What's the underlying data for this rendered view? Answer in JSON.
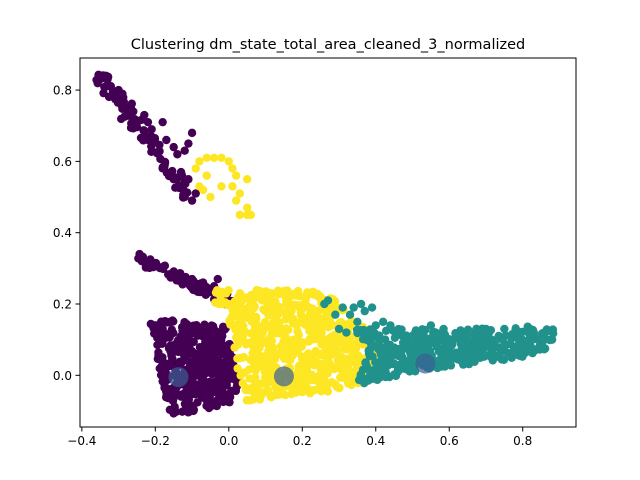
{
  "chart_data": {
    "type": "scatter",
    "title": "Clustering dm_state_total_area_cleaned_3_normalized",
    "xlabel": "",
    "ylabel": "",
    "xlim": [
      -0.405,
      0.945
    ],
    "ylim": [
      -0.145,
      0.89
    ],
    "xticks": [
      -0.4,
      -0.2,
      0.0,
      0.2,
      0.4,
      0.6,
      0.8
    ],
    "xtick_labels": [
      "−0.4",
      "−0.2",
      "0.0",
      "0.2",
      "0.4",
      "0.6",
      "0.8"
    ],
    "yticks": [
      0.0,
      0.2,
      0.4,
      0.6,
      0.8
    ],
    "ytick_labels": [
      "0.0",
      "0.2",
      "0.4",
      "0.6",
      "0.8"
    ],
    "grid": false,
    "legend": "none",
    "clusters": [
      {
        "color": "#440154",
        "regions": [
          {
            "kind": "band",
            "from": [
              -0.355,
              0.85
            ],
            "to": [
              -0.11,
              0.5
            ],
            "spread": 0.03,
            "n": 90
          },
          {
            "kind": "band",
            "from": [
              -0.25,
              0.33
            ],
            "to": [
              0.02,
              0.2
            ],
            "spread": 0.02,
            "n": 90
          },
          {
            "kind": "polygon",
            "points": [
              [
                -0.22,
                0.16
              ],
              [
                -0.01,
                0.14
              ],
              [
                0.03,
                -0.01
              ],
              [
                0.01,
                -0.09
              ],
              [
                -0.16,
                -0.11
              ]
            ],
            "n": 420
          }
        ],
        "extra_points": [
          [
            -0.33,
            0.83
          ],
          [
            -0.3,
            0.8
          ],
          [
            -0.26,
            0.74
          ],
          [
            -0.23,
            0.73
          ],
          [
            -0.22,
            0.71
          ],
          [
            -0.21,
            0.69
          ],
          [
            -0.18,
            0.71
          ],
          [
            -0.17,
            0.66
          ],
          [
            -0.15,
            0.64
          ],
          [
            -0.14,
            0.62
          ],
          [
            -0.12,
            0.63
          ],
          [
            -0.1,
            0.68
          ],
          [
            -0.11,
            0.65
          ],
          [
            -0.11,
            0.55
          ],
          [
            -0.15,
            0.55
          ],
          [
            -0.13,
            0.57
          ],
          [
            -0.12,
            0.54
          ],
          [
            -0.09,
            0.51
          ],
          [
            -0.12,
            0.5
          ],
          [
            -0.1,
            0.49
          ],
          [
            -0.1,
            0.27
          ],
          [
            -0.07,
            0.26
          ],
          [
            -0.04,
            0.25
          ],
          [
            -0.03,
            0.27
          ],
          [
            -0.03,
            0.22
          ],
          [
            0.0,
            0.21
          ]
        ],
        "centroid": [
          -0.137,
          -0.005
        ]
      },
      {
        "color": "#fde725",
        "regions": [
          {
            "kind": "polygon",
            "points": [
              [
                -0.07,
                0.24
              ],
              [
                0.28,
                0.24
              ],
              [
                0.33,
                0.16
              ],
              [
                0.42,
                0.1
              ],
              [
                0.38,
                -0.03
              ],
              [
                0.04,
                -0.08
              ],
              [
                0.0,
                0.16
              ],
              [
                -0.04,
                0.2
              ]
            ],
            "n": 650
          }
        ],
        "extra_points": [
          [
            -0.08,
            0.6
          ],
          [
            -0.09,
            0.58
          ],
          [
            -0.06,
            0.61
          ],
          [
            -0.04,
            0.61
          ],
          [
            -0.02,
            0.61
          ],
          [
            0.0,
            0.6
          ],
          [
            0.01,
            0.58
          ],
          [
            0.02,
            0.56
          ],
          [
            0.01,
            0.53
          ],
          [
            0.03,
            0.51
          ],
          [
            0.02,
            0.49
          ],
          [
            -0.05,
            0.5
          ],
          [
            -0.07,
            0.52
          ],
          [
            -0.06,
            0.56
          ],
          [
            -0.08,
            0.53
          ],
          [
            0.05,
            0.55
          ],
          [
            0.03,
            0.45
          ],
          [
            0.05,
            0.45
          ],
          [
            0.06,
            0.45
          ],
          [
            -0.02,
            0.53
          ],
          [
            0.05,
            0.47
          ]
        ],
        "centroid": [
          0.15,
          -0.003
        ]
      },
      {
        "color": "#21918c",
        "regions": [
          {
            "kind": "polygon",
            "points": [
              [
                0.34,
                0.13
              ],
              [
                0.6,
                0.13
              ],
              [
                0.8,
                0.14
              ],
              [
                0.89,
                0.13
              ],
              [
                0.86,
                0.07
              ],
              [
                0.8,
                0.05
              ],
              [
                0.5,
                0.01
              ],
              [
                0.35,
                -0.03
              ],
              [
                0.38,
                0.08
              ]
            ],
            "n": 420
          }
        ],
        "extra_points": [
          [
            0.26,
            0.2
          ],
          [
            0.27,
            0.21
          ],
          [
            0.29,
            0.17
          ],
          [
            0.31,
            0.19
          ],
          [
            0.33,
            0.17
          ],
          [
            0.34,
            0.19
          ],
          [
            0.36,
            0.2
          ],
          [
            0.37,
            0.18
          ],
          [
            0.39,
            0.19
          ],
          [
            0.35,
            0.15
          ],
          [
            0.4,
            0.14
          ],
          [
            0.42,
            0.15
          ],
          [
            0.44,
            0.14
          ],
          [
            0.3,
            0.13
          ],
          [
            0.32,
            0.12
          ],
          [
            0.55,
            0.14
          ],
          [
            0.7,
            0.13
          ],
          [
            0.75,
            0.13
          ],
          [
            0.83,
            0.12
          ],
          [
            0.86,
            0.12
          ],
          [
            0.88,
            0.1
          ]
        ],
        "centroid": [
          0.535,
          0.033
        ]
      }
    ],
    "centroid_marker": {
      "color": "#3b5f93",
      "opacity": 0.7
    }
  }
}
